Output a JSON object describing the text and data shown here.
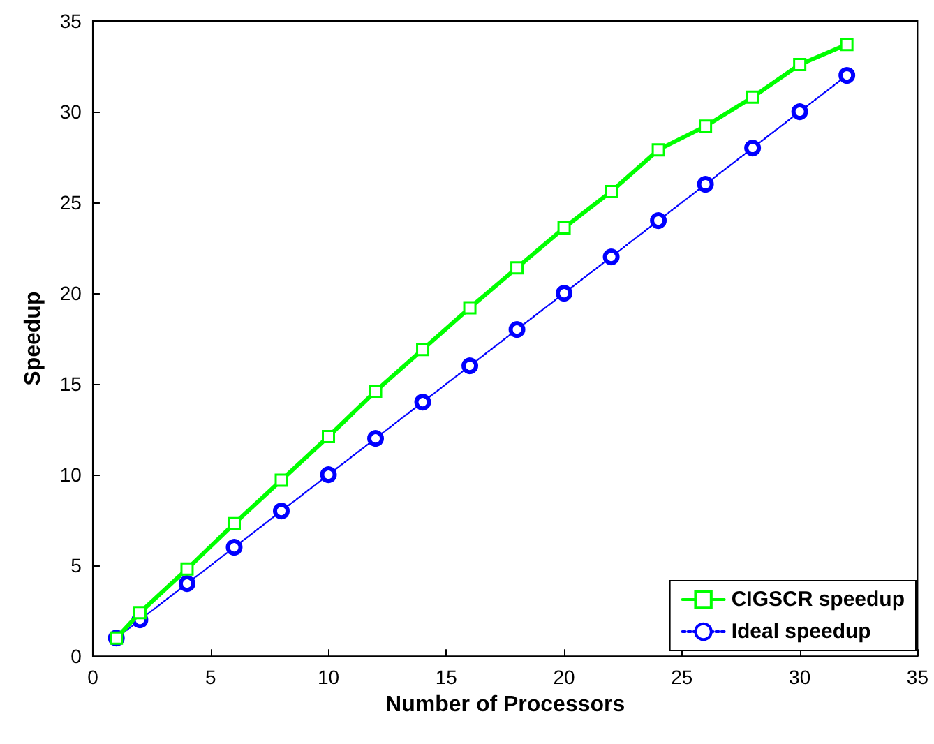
{
  "chart_data": {
    "type": "line",
    "xlabel": "Number of Processors",
    "ylabel": "Speedup",
    "x": [
      1,
      2,
      4,
      6,
      8,
      10,
      12,
      14,
      16,
      18,
      20,
      22,
      24,
      26,
      28,
      30,
      32
    ],
    "series": [
      {
        "name": "CIGSCR speedup",
        "color": "#00ff00",
        "marker": "square",
        "line_style": "solid",
        "values": [
          1.0,
          2.4,
          4.8,
          7.3,
          9.7,
          12.1,
          14.6,
          16.9,
          19.2,
          21.4,
          23.6,
          25.6,
          27.9,
          29.2,
          30.8,
          32.6,
          33.7
        ]
      },
      {
        "name": "Ideal speedup",
        "color": "#0000ff",
        "marker": "circle",
        "line_style": "dotted",
        "values": [
          1,
          2,
          4,
          6,
          8,
          10,
          12,
          14,
          16,
          18,
          20,
          22,
          24,
          26,
          28,
          30,
          32
        ]
      }
    ],
    "xlim": [
      0,
      35
    ],
    "xticks": [
      0,
      5,
      10,
      15,
      20,
      25,
      30,
      35
    ],
    "ylim": [
      0,
      35
    ],
    "yticks": [
      0,
      5,
      10,
      15,
      20,
      25,
      30,
      35
    ],
    "grid": false,
    "legend": "bottom right"
  }
}
